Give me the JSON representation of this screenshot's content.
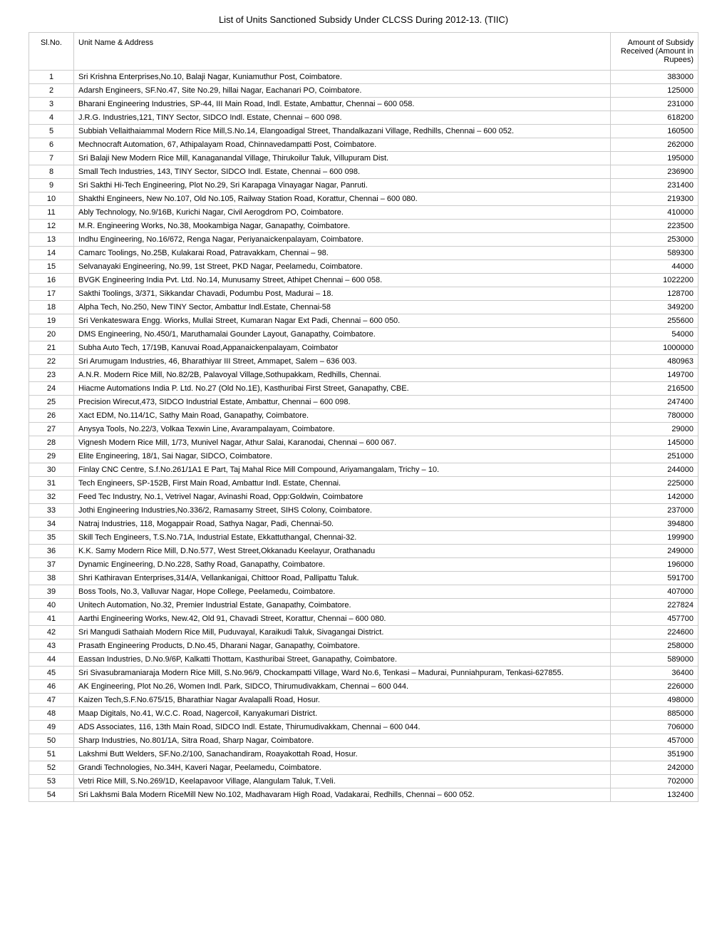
{
  "title": "List of Units Sanctioned Subsidy Under CLCSS During 2012-13. (TIIC)",
  "columns": {
    "sno": "Sl.No.",
    "unit": "Unit Name & Address",
    "amount": "Amount of Subsidy Received (Amount in Rupees)"
  },
  "rows": [
    {
      "sno": "1",
      "unit": "Sri Krishna Enterprises,No.10, Balaji Nagar,    Kuniamuthur Post, Coimbatore.",
      "amount": "383000"
    },
    {
      "sno": "2",
      "unit": "Adarsh Engineers,        SF.No.47, Site No.29, hillai Nagar, Eachanari PO, Coimbatore.",
      "amount": "125000"
    },
    {
      "sno": "3",
      "unit": "Bharani Engineering Industries,       SP-44, III Main Road, Indl. Estate, Ambattur, Chennai – 600 058.",
      "amount": "231000"
    },
    {
      "sno": "4",
      "unit": "J.R.G. Industries,121, TINY Sector, SIDCO Indl.     Estate, Chennai – 600 098.",
      "amount": "618200"
    },
    {
      "sno": "5",
      "unit": "Subbiah Vellaithaiammal Modern  Rice Mill,S.No.14, Elangoadigal Street,  Thandalkazani Village, Redhills, Chennai – 600 052.",
      "amount": "160500"
    },
    {
      "sno": "6",
      "unit": "Mechnocraft Automation,   67, Athipalayam Road,  Chinnavedampatti Post,   Coimbatore.",
      "amount": "262000"
    },
    {
      "sno": "7",
      "unit": "Sri Balaji New Modern Rice Mill,   Kanaganandal Village,   Thirukoilur Taluk, Villupuram Dist.",
      "amount": "195000"
    },
    {
      "sno": "8",
      "unit": "Small Tech Industries,   143, TINY Sector, SIDCO Indl.    Estate, Chennai – 600 098.",
      "amount": "236900"
    },
    {
      "sno": "9",
      "unit": "Sri Sakthi Hi-Tech Engineering,   Plot No.29, Sri Karapaga     Vinayagar Nagar, Panruti.",
      "amount": "231400"
    },
    {
      "sno": "10",
      "unit": "Shakthi Engineers,    New No.107, Old No.105,        Railway Station Road, Korattur,  Chennai – 600 080.",
      "amount": "219300"
    },
    {
      "sno": "11",
      "unit": "Ably Technology,      No.9/16B, Kurichi Nagar,  Civil Aerogdrom PO, Coimbatore.",
      "amount": "410000"
    },
    {
      "sno": "12",
      "unit": "M.R. Engineering Works,      No.38, Mookambiga Nagar,  Ganapathy, Coimbatore.",
      "amount": "223500"
    },
    {
      "sno": "13",
      "unit": "Indhu Engineering,     No.16/672, Renga Nagar, Periyanaickenpalayam,  Coimbatore.",
      "amount": "253000"
    },
    {
      "sno": "14",
      "unit": "Camarc Toolings, No.25B, Kulakarai Road,      Patravakkam, Chennai – 98.",
      "amount": "589300"
    },
    {
      "sno": "15",
      "unit": "Selvanayaki Engineering,      No.99, 1st Street, PKD Nagar,          Peelamedu, Coimbatore.",
      "amount": "44000"
    },
    {
      "sno": "16",
      "unit": "BVGK Engineering India Pvt. Ltd. No.14, Munusamy Street, Athipet Chennai – 600 058.",
      "amount": "1022200"
    },
    {
      "sno": "17",
      "unit": "Sakthi Toolings,   3/371, Sikkandar Chavadi,   Podumbu Post, Madurai – 18.",
      "amount": "128700"
    },
    {
      "sno": "18",
      "unit": "Alpha Tech, No.250, New TINY Sector,  Ambattur Indl.Estate, Chennai-58",
      "amount": "349200"
    },
    {
      "sno": "19",
      "unit": "Sri Venkateswara Engg. Wiorks, Mullai Street, Kumaran Nagar Ext Padi, Chennai – 600 050.",
      "amount": "255600"
    },
    {
      "sno": "20",
      "unit": "DMS Engineering, No.450/1, Maruthamalai Gounder Layout, Ganapathy, Coimbatore.",
      "amount": "54000"
    },
    {
      "sno": "21",
      "unit": "Subha Auto Tech,         17/19B, Kanuvai Road,Appanaickenpalayam, Coimbator",
      "amount": "1000000"
    },
    {
      "sno": "22",
      "unit": "Sri Arumugam Industries,      46, Bharathiyar III Street,    Ammapet, Salem – 636 003.",
      "amount": "480963"
    },
    {
      "sno": "23",
      "unit": "A.N.R. Modern Rice Mill,       No.82/2B, Palavoyal Village,Sothupakkam, Redhills, Chennai.",
      "amount": "149700"
    },
    {
      "sno": "24",
      "unit": "Hiacme Automations India P. Ltd. No.27 (Old No.1E), Kasthuribai    First Street, Ganapathy, CBE.",
      "amount": "216500"
    },
    {
      "sno": "25",
      "unit": "Precision Wirecut,473, SIDCO Industrial Estate,      Ambattur, Chennai – 600 098.",
      "amount": "247400"
    },
    {
      "sno": "26",
      "unit": "Xact EDM,     No.114/1C, Sathy Main Road,      Ganapathy, Coimbatore.",
      "amount": "780000"
    },
    {
      "sno": "27",
      "unit": "Anysya Tools,     No.22/3, Volkaa Texwin Line,      Avarampalayam, Coimbatore.",
      "amount": "29000"
    },
    {
      "sno": "28",
      "unit": "Vignesh Modern Rice Mill,   1/73, Munivel Nagar, Athur Salai, Karanodai, Chennai – 600 067.",
      "amount": "145000"
    },
    {
      "sno": "29",
      "unit": "Elite Engineering,  18/1, Sai Nagar, SIDCO,       Coimbatore.",
      "amount": "251000"
    },
    {
      "sno": "30",
      "unit": "Finlay CNC Centre,       S.f.No.261/1A1 E Part, Taj Mahal Rice Mill Compound,     Ariyamangalam, Trichy – 10.",
      "amount": "244000"
    },
    {
      "sno": "31",
      "unit": "Tech Engineers,   SP-152B, First Main Road,   Ambattur Indl. Estate, Chennai.",
      "amount": "225000"
    },
    {
      "sno": "32",
      "unit": "Feed Tec Industry,         No.1, Vetrivel Nagar, Avinashi   Road, Opp:Goldwin, Coimbatore",
      "amount": "142000"
    },
    {
      "sno": "33",
      "unit": "Jothi Engineering Industries,No.336/2, Ramasamy Street,        SIHS Colony, Coimbatore.",
      "amount": "237000"
    },
    {
      "sno": "34",
      "unit": "Natraj Industries, 118, Mogappair Road,  Sathya Nagar, Padi, Chennai-50.",
      "amount": "394800"
    },
    {
      "sno": "35",
      "unit": "Skill Tech Engineers,    T.S.No.71A, Industrial Estate,    Ekkattuthangal, Chennai-32.",
      "amount": "199900"
    },
    {
      "sno": "36",
      "unit": "K.K. Samy Modern Rice Mill, D.No.577, West Street,Okkanadu Keelayur, Orathanadu",
      "amount": "249000"
    },
    {
      "sno": "37",
      "unit": "Dynamic Engineering,  D.No.228, Sathy Road, Ganapathy, Coimbatore.",
      "amount": "196000"
    },
    {
      "sno": "38",
      "unit": "Shri Kathiravan Enterprises,314/A, Vellankanigai,   Chittoor Road, Pallipattu Taluk.",
      "amount": "591700"
    },
    {
      "sno": "39",
      "unit": "Boss Tools,  No.3, Valluvar Nagar, Hope College, Peelamedu, Coimbatore.",
      "amount": "407000"
    },
    {
      "sno": "40",
      "unit": "Unitech Automation,     No.32, Premier Industrial Estate,  Ganapathy, Coimbatore.",
      "amount": "227824"
    },
    {
      "sno": "41",
      "unit": "Aarthi Engineering Works,   New.42, Old 91, Chavadi Street, Korattur, Chennai – 600 080.",
      "amount": "457700"
    },
    {
      "sno": "42",
      "unit": "Sri Mangudi Sathaiah Modern      Rice Mill, Puduvayal, Karaikudi    Taluk, Sivagangai District.",
      "amount": "224600"
    },
    {
      "sno": "43",
      "unit": "Prasath Engineering Products,      D.No.45, Dharani Nagar,       Ganapathy, Coimbatore.",
      "amount": "258000"
    },
    {
      "sno": "44",
      "unit": "Eassan Industries,        D.No.9/6P, Kalkatti Thottam, Kasthuribai Street, Ganapathy,   Coimbatore.",
      "amount": "589000"
    },
    {
      "sno": "45",
      "unit": "Sri Sivasubramaniaraja Modern   Rice Mill,         S.No.96/9, Chockampatti Village, Ward No.6, Tenkasi – Madurai, Punniahpuram, Tenkasi-627855.",
      "amount": "36400"
    },
    {
      "sno": "46",
      "unit": "AK Engineering,   Plot No.26, Women Indl. Park,         SIDCO, Thirumudivakkam,        Chennai – 600 044.",
      "amount": "226000"
    },
    {
      "sno": "47",
      "unit": "Kaizen Tech,S.F.No.675/15, Bharathiar Nagar Avalapalli Road, Hosur.",
      "amount": "498000"
    },
    {
      "sno": "48",
      "unit": "Maap Digitals,        No.41, W.C.C. Road,      Nagercoil, Kanyakumari District.",
      "amount": "885000"
    },
    {
      "sno": "49",
      "unit": "ADS Associates, 116, 13th Main Road, SIDCO Indl.  Estate, Thirumudivakkam,      Chennai – 600 044.",
      "amount": "706000"
    },
    {
      "sno": "50",
      "unit": "Sharp Industries, No.801/1A, Sitra Road, Sharp Nagar, Coimbatore.",
      "amount": "457000"
    },
    {
      "sno": "51",
      "unit": "Lakshmi Butt Welders,  SF.No.2/100, Sanachandiram,      Roayakottah Road, Hosur.",
      "amount": "351900"
    },
    {
      "sno": "52",
      "unit": "Grandi Technologies,   No.34H, Kaveri Nagar, Peelamedu, Coimbatore.",
      "amount": "242000"
    },
    {
      "sno": "53",
      "unit": "Vetri Rice Mill,        S.No.269/1D, Keelapavoor   Village, Alangulam Taluk, T.Veli.",
      "amount": "702000"
    },
    {
      "sno": "54",
      "unit": "Sri Lakhsmi Bala Modern RiceMill New No.102, Madhavaram High   Road, Vadakarai, Redhills,   Chennai – 600 052.",
      "amount": "132400"
    }
  ],
  "styling": {
    "background_color": "#ffffff",
    "text_color": "#000000",
    "border_color": "#cccccc",
    "font_family": "Arial, sans-serif",
    "body_font_size": 11,
    "title_font_size": 13,
    "col_widths": {
      "sno": 50,
      "amount": 110
    }
  }
}
